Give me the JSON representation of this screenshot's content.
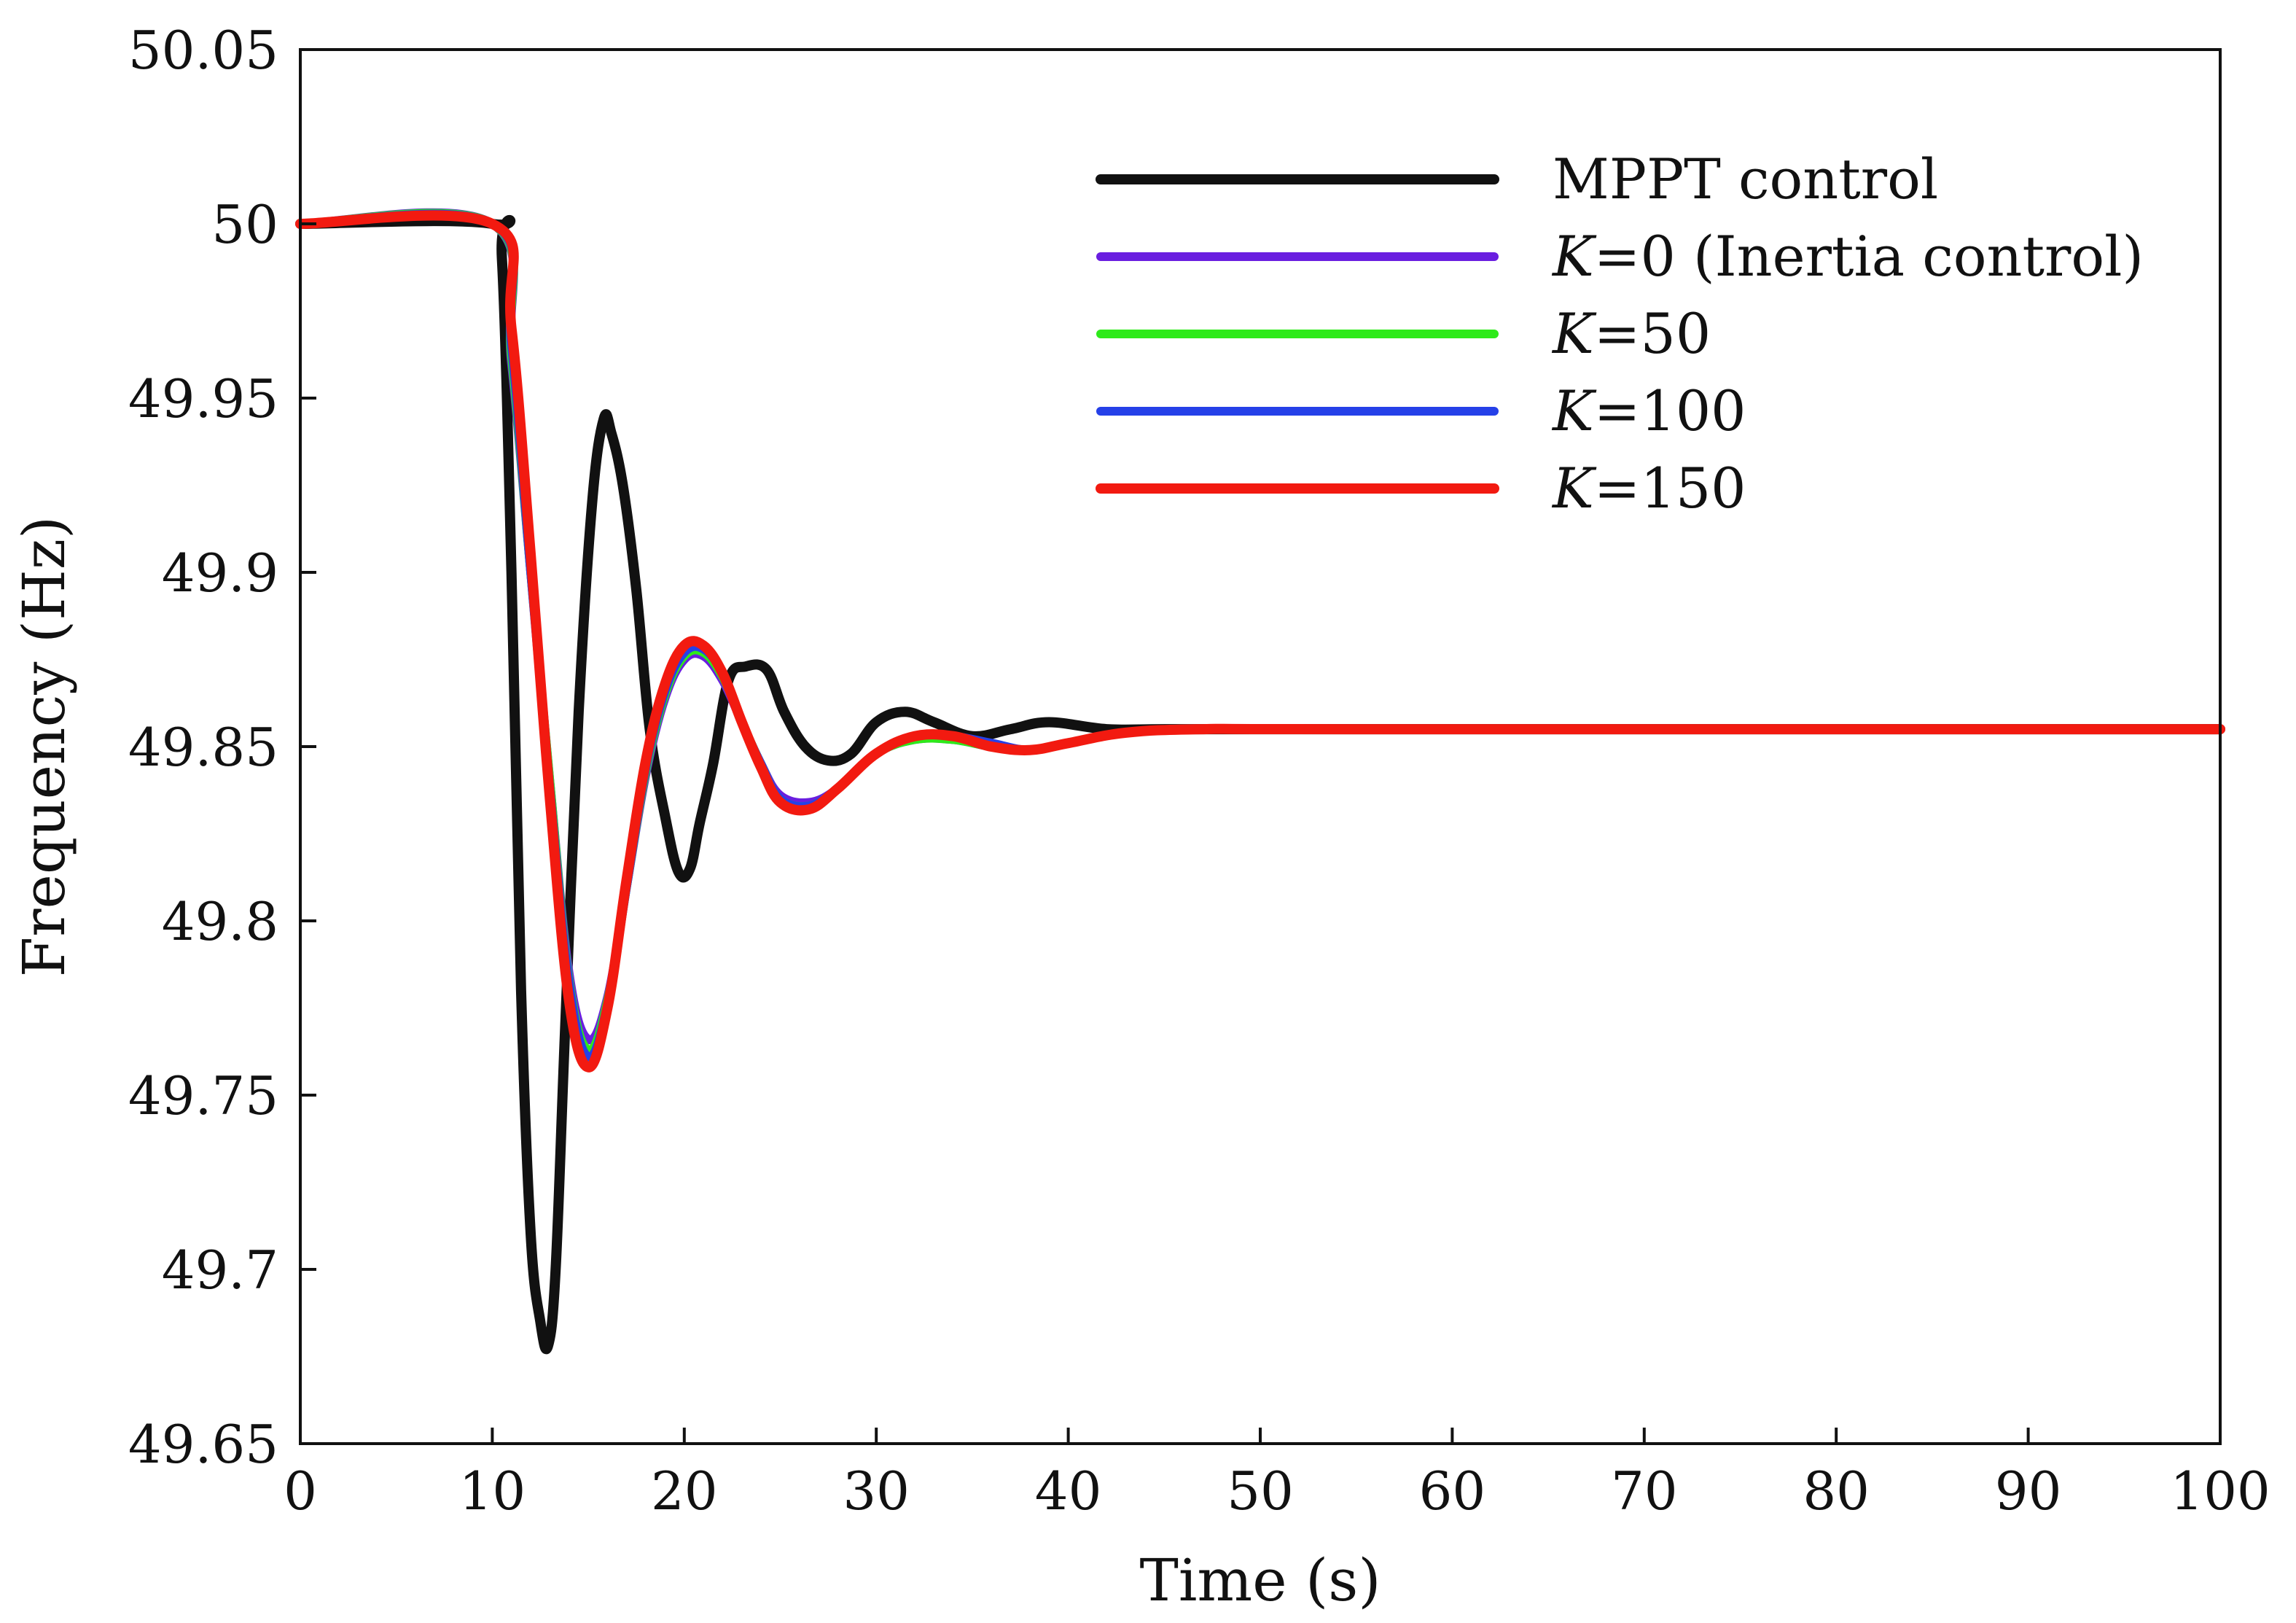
{
  "chart_data": {
    "type": "line",
    "xlabel": "Time (s)",
    "ylabel": "Frequency (Hz)",
    "xlim": [
      0,
      100
    ],
    "ylim": [
      49.65,
      50.05
    ],
    "xticks": [
      0,
      10,
      20,
      30,
      40,
      50,
      60,
      70,
      80,
      90,
      100
    ],
    "yticks": [
      49.65,
      49.7,
      49.75,
      49.8,
      49.85,
      49.9,
      49.95,
      50,
      50.05
    ],
    "ytick_labels": [
      "49.65",
      "49.7",
      "49.75",
      "49.8",
      "49.85",
      "49.9",
      "49.95",
      "50",
      "50.05"
    ],
    "grid": false,
    "legend_position": "top-right",
    "series": [
      {
        "name": "MPPT control",
        "label_prefix": "",
        "label_suffix": "MPPT control",
        "color": "#111111",
        "x": [
          0,
          10,
          10.5,
          11,
          11.5,
          12,
          12.5,
          12.9,
          13.3,
          13.8,
          14.5,
          15.2,
          15.8,
          16.2,
          16.8,
          17.5,
          18.2,
          19,
          19.7,
          20.3,
          20.8,
          21.5,
          22.3,
          23.2,
          24.3,
          25.2,
          26.3,
          27.5,
          28.7,
          30,
          31.5,
          33,
          35,
          37,
          39,
          42,
          45,
          50,
          60,
          100
        ],
        "y": [
          50,
          50,
          49.99,
          49.9,
          49.78,
          49.71,
          49.685,
          49.678,
          49.7,
          49.77,
          49.86,
          49.92,
          49.944,
          49.94,
          49.925,
          49.895,
          49.855,
          49.83,
          49.814,
          49.815,
          49.828,
          49.845,
          49.869,
          49.873,
          49.872,
          49.86,
          49.85,
          49.846,
          49.848,
          49.857,
          49.86,
          49.857,
          49.853,
          49.855,
          49.857,
          49.855,
          49.855,
          49.855,
          49.855,
          49.855
        ]
      },
      {
        "name": "K=0 (Inertia control)",
        "label_prefix": "K",
        "label_suffix": "=0 (Inertia control)",
        "color": "#6a1ee0",
        "x": [
          0,
          10,
          11,
          12,
          13,
          14,
          15,
          16,
          17,
          18,
          19,
          20,
          21,
          22,
          23,
          24,
          25,
          26.5,
          28,
          30,
          32,
          34,
          36,
          38,
          40,
          43,
          47,
          55,
          100
        ],
        "y": [
          50,
          50,
          49.96,
          49.9,
          49.84,
          49.785,
          49.766,
          49.778,
          49.81,
          49.842,
          49.864,
          49.875,
          49.876,
          49.869,
          49.857,
          49.845,
          49.836,
          49.834,
          49.838,
          49.848,
          49.852,
          49.852,
          49.85,
          49.849,
          49.851,
          49.854,
          49.855,
          49.855,
          49.855
        ]
      },
      {
        "name": "K=50",
        "label_prefix": "K",
        "label_suffix": "=50",
        "color": "#2eea1a",
        "x": [
          0,
          10,
          11,
          12,
          13,
          14,
          15,
          16,
          17,
          18,
          19,
          20,
          21,
          22,
          23,
          24,
          25,
          26.5,
          28,
          30,
          32,
          34,
          36,
          38,
          40,
          43,
          47,
          55,
          100
        ],
        "y": [
          50,
          50,
          49.962,
          49.9,
          49.84,
          49.783,
          49.763,
          49.777,
          49.81,
          49.843,
          49.865,
          49.876,
          49.877,
          49.87,
          49.857,
          49.845,
          49.835,
          49.833,
          49.838,
          49.848,
          49.852,
          49.852,
          49.85,
          49.849,
          49.851,
          49.854,
          49.855,
          49.855,
          49.855
        ]
      },
      {
        "name": "K=100",
        "label_prefix": "K",
        "label_suffix": "=100",
        "color": "#2540e8",
        "x": [
          0,
          10,
          11,
          12,
          13,
          14,
          15,
          16,
          17,
          18,
          19,
          20,
          21,
          22,
          23,
          24,
          25,
          26.5,
          28,
          30,
          32,
          34,
          36,
          38,
          40,
          43,
          47,
          55,
          100
        ],
        "y": [
          50,
          50,
          49.965,
          49.9,
          49.838,
          49.782,
          49.761,
          49.776,
          49.81,
          49.844,
          49.866,
          49.877,
          49.878,
          49.871,
          49.857,
          49.845,
          49.835,
          49.833,
          49.838,
          49.848,
          49.853,
          49.853,
          49.851,
          49.849,
          49.851,
          49.854,
          49.855,
          49.855,
          49.855
        ]
      },
      {
        "name": "K=150",
        "label_prefix": "K",
        "label_suffix": "=150",
        "color": "#f21a10",
        "x": [
          0,
          10,
          11,
          12,
          13,
          14,
          15,
          16,
          17,
          18,
          19,
          20,
          21,
          22,
          23,
          24,
          25,
          26.5,
          28,
          30,
          32,
          34,
          36,
          38,
          40,
          43,
          47,
          55,
          100
        ],
        "y": [
          50,
          50,
          49.97,
          49.905,
          49.835,
          49.777,
          49.758,
          49.775,
          49.812,
          49.846,
          49.868,
          49.879,
          49.879,
          49.871,
          49.857,
          49.844,
          49.834,
          49.832,
          49.838,
          49.848,
          49.853,
          49.853,
          49.85,
          49.849,
          49.851,
          49.854,
          49.855,
          49.855,
          49.855
        ]
      }
    ]
  }
}
